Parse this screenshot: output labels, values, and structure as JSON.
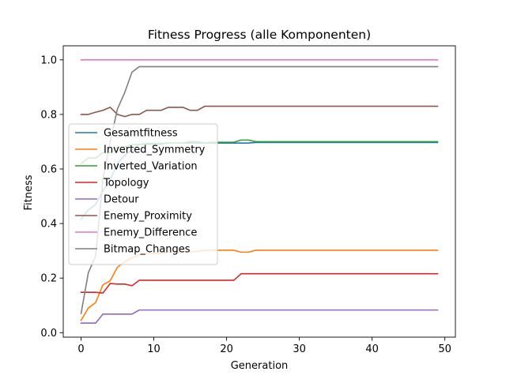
{
  "chart_data": {
    "type": "line",
    "title": "Fitness Progress (alle Komponenten)",
    "xlabel": "Generation",
    "ylabel": "Fitness",
    "xlim": [
      -2.45,
      51.45
    ],
    "ylim": [
      -0.0165,
      1.0515
    ],
    "xticks": [
      0,
      10,
      20,
      30,
      40,
      50
    ],
    "yticks": [
      0.0,
      0.2,
      0.4,
      0.6,
      0.8,
      1.0
    ],
    "grid": false,
    "legend_position": "center-left",
    "series": [
      {
        "name": "Gesamtfitness",
        "color": "#1f77b4",
        "x": [
          0,
          1,
          2,
          3,
          4,
          5,
          6,
          7,
          8,
          9,
          10,
          11,
          12,
          13,
          14,
          15,
          16,
          17,
          18,
          19,
          20,
          21,
          22,
          23,
          24,
          25,
          26,
          27,
          28,
          29,
          30,
          31,
          32,
          33,
          34,
          35,
          36,
          37,
          38,
          39,
          40,
          41,
          42,
          43,
          44,
          45,
          46,
          47,
          48,
          49
        ],
        "y": [
          0.415,
          0.45,
          0.47,
          0.52,
          0.56,
          0.62,
          0.65,
          0.67,
          0.69,
          0.693,
          0.694,
          0.694,
          0.695,
          0.695,
          0.695,
          0.695,
          0.695,
          0.695,
          0.695,
          0.695,
          0.695,
          0.695,
          0.695,
          0.695,
          0.697,
          0.697,
          0.697,
          0.697,
          0.697,
          0.697,
          0.697,
          0.697,
          0.697,
          0.697,
          0.697,
          0.697,
          0.697,
          0.697,
          0.697,
          0.697,
          0.697,
          0.697,
          0.697,
          0.697,
          0.697,
          0.697,
          0.697,
          0.697,
          0.697,
          0.697
        ]
      },
      {
        "name": "Inverted_Symmetry",
        "color": "#ff7f0e",
        "x": [
          0,
          1,
          2,
          3,
          4,
          5,
          6,
          7,
          8,
          9,
          10,
          11,
          12,
          13,
          14,
          15,
          16,
          17,
          18,
          19,
          20,
          21,
          22,
          23,
          24,
          25,
          26,
          27,
          28,
          29,
          30,
          31,
          32,
          33,
          34,
          35,
          36,
          37,
          38,
          39,
          40,
          41,
          42,
          43,
          44,
          45,
          46,
          47,
          48,
          49
        ],
        "y": [
          0.045,
          0.09,
          0.11,
          0.175,
          0.19,
          0.24,
          0.26,
          0.275,
          0.285,
          0.29,
          0.29,
          0.29,
          0.295,
          0.295,
          0.295,
          0.295,
          0.298,
          0.302,
          0.302,
          0.302,
          0.302,
          0.302,
          0.295,
          0.295,
          0.302,
          0.302,
          0.302,
          0.302,
          0.302,
          0.302,
          0.302,
          0.302,
          0.302,
          0.302,
          0.302,
          0.302,
          0.302,
          0.302,
          0.302,
          0.302,
          0.302,
          0.302,
          0.302,
          0.302,
          0.302,
          0.302,
          0.302,
          0.302,
          0.302,
          0.302
        ]
      },
      {
        "name": "Inverted_Variation",
        "color": "#2ca02c",
        "x": [
          0,
          1,
          2,
          3,
          4,
          5,
          6,
          7,
          8,
          9,
          10,
          11,
          12,
          13,
          14,
          15,
          16,
          17,
          18,
          19,
          20,
          21,
          22,
          23,
          24,
          25,
          26,
          27,
          28,
          29,
          30,
          31,
          32,
          33,
          34,
          35,
          36,
          37,
          38,
          39,
          40,
          41,
          42,
          43,
          44,
          45,
          46,
          47,
          48,
          49
        ],
        "y": [
          0.62,
          0.64,
          0.64,
          0.66,
          0.66,
          0.68,
          0.68,
          0.69,
          0.69,
          0.69,
          0.69,
          0.69,
          0.695,
          0.695,
          0.695,
          0.7,
          0.7,
          0.695,
          0.698,
          0.698,
          0.698,
          0.698,
          0.706,
          0.706,
          0.7,
          0.7,
          0.7,
          0.7,
          0.7,
          0.7,
          0.7,
          0.7,
          0.7,
          0.7,
          0.7,
          0.7,
          0.7,
          0.7,
          0.7,
          0.7,
          0.7,
          0.7,
          0.7,
          0.7,
          0.7,
          0.7,
          0.7,
          0.7,
          0.7,
          0.7
        ]
      },
      {
        "name": "Topology",
        "color": "#d62728",
        "x": [
          0,
          1,
          2,
          3,
          4,
          5,
          6,
          7,
          8,
          9,
          10,
          11,
          12,
          13,
          14,
          15,
          16,
          17,
          18,
          19,
          20,
          21,
          22,
          23,
          24,
          25,
          26,
          27,
          28,
          29,
          30,
          31,
          32,
          33,
          34,
          35,
          36,
          37,
          38,
          39,
          40,
          41,
          42,
          43,
          44,
          45,
          46,
          47,
          48,
          49
        ],
        "y": [
          0.148,
          0.148,
          0.148,
          0.145,
          0.18,
          0.178,
          0.178,
          0.172,
          0.192,
          0.192,
          0.192,
          0.192,
          0.192,
          0.192,
          0.192,
          0.192,
          0.192,
          0.192,
          0.192,
          0.192,
          0.192,
          0.192,
          0.216,
          0.216,
          0.216,
          0.216,
          0.216,
          0.216,
          0.216,
          0.216,
          0.216,
          0.216,
          0.216,
          0.216,
          0.216,
          0.216,
          0.216,
          0.216,
          0.216,
          0.216,
          0.216,
          0.216,
          0.216,
          0.216,
          0.216,
          0.216,
          0.216,
          0.216,
          0.216,
          0.216
        ]
      },
      {
        "name": "Detour",
        "color": "#9467bd",
        "x": [
          0,
          1,
          2,
          3,
          4,
          5,
          6,
          7,
          8,
          9,
          10,
          11,
          12,
          13,
          14,
          15,
          16,
          17,
          18,
          19,
          20,
          21,
          22,
          23,
          24,
          25,
          26,
          27,
          28,
          29,
          30,
          31,
          32,
          33,
          34,
          35,
          36,
          37,
          38,
          39,
          40,
          41,
          42,
          43,
          44,
          45,
          46,
          47,
          48,
          49
        ],
        "y": [
          0.035,
          0.035,
          0.035,
          0.068,
          0.068,
          0.068,
          0.068,
          0.068,
          0.083,
          0.083,
          0.083,
          0.083,
          0.083,
          0.083,
          0.083,
          0.083,
          0.083,
          0.083,
          0.083,
          0.083,
          0.083,
          0.083,
          0.083,
          0.083,
          0.083,
          0.083,
          0.083,
          0.083,
          0.083,
          0.083,
          0.083,
          0.083,
          0.083,
          0.083,
          0.083,
          0.083,
          0.083,
          0.083,
          0.083,
          0.083,
          0.083,
          0.083,
          0.083,
          0.083,
          0.083,
          0.083,
          0.083,
          0.083,
          0.083,
          0.083
        ]
      },
      {
        "name": "Enemy_Proximity",
        "color": "#8c564b",
        "x": [
          0,
          1,
          2,
          3,
          4,
          5,
          6,
          7,
          8,
          9,
          10,
          11,
          12,
          13,
          14,
          15,
          16,
          17,
          18,
          19,
          20,
          21,
          22,
          23,
          24,
          25,
          26,
          27,
          28,
          29,
          30,
          31,
          32,
          33,
          34,
          35,
          36,
          37,
          38,
          39,
          40,
          41,
          42,
          43,
          44,
          45,
          46,
          47,
          48,
          49
        ],
        "y": [
          0.8,
          0.8,
          0.808,
          0.815,
          0.826,
          0.8,
          0.792,
          0.8,
          0.8,
          0.815,
          0.815,
          0.815,
          0.826,
          0.826,
          0.826,
          0.815,
          0.815,
          0.83,
          0.83,
          0.83,
          0.83,
          0.83,
          0.83,
          0.83,
          0.83,
          0.83,
          0.83,
          0.83,
          0.83,
          0.83,
          0.83,
          0.83,
          0.83,
          0.83,
          0.83,
          0.83,
          0.83,
          0.83,
          0.83,
          0.83,
          0.83,
          0.83,
          0.83,
          0.83,
          0.83,
          0.83,
          0.83,
          0.83,
          0.83,
          0.83
        ]
      },
      {
        "name": "Enemy_Difference",
        "color": "#e377c2",
        "x": [
          0,
          49
        ],
        "y": [
          1.0,
          1.0
        ]
      },
      {
        "name": "Bitmap_Changes",
        "color": "#7f7f7f",
        "x": [
          0,
          1,
          2,
          3,
          4,
          5,
          6,
          7,
          8,
          9,
          10,
          11,
          12,
          13,
          14,
          15,
          16,
          17,
          18,
          19,
          20,
          21,
          22,
          23,
          24,
          25,
          26,
          27,
          28,
          29,
          30,
          31,
          32,
          33,
          34,
          35,
          36,
          37,
          38,
          39,
          40,
          41,
          42,
          43,
          44,
          45,
          46,
          47,
          48,
          49
        ],
        "y": [
          0.07,
          0.22,
          0.28,
          0.56,
          0.7,
          0.82,
          0.88,
          0.955,
          0.975,
          0.975,
          0.975,
          0.975,
          0.975,
          0.975,
          0.975,
          0.975,
          0.975,
          0.975,
          0.975,
          0.975,
          0.975,
          0.975,
          0.975,
          0.975,
          0.975,
          0.975,
          0.975,
          0.975,
          0.975,
          0.975,
          0.975,
          0.975,
          0.975,
          0.975,
          0.975,
          0.975,
          0.975,
          0.975,
          0.975,
          0.975,
          0.975,
          0.975,
          0.975,
          0.975,
          0.975,
          0.975,
          0.975,
          0.975,
          0.975,
          0.975
        ]
      }
    ]
  }
}
